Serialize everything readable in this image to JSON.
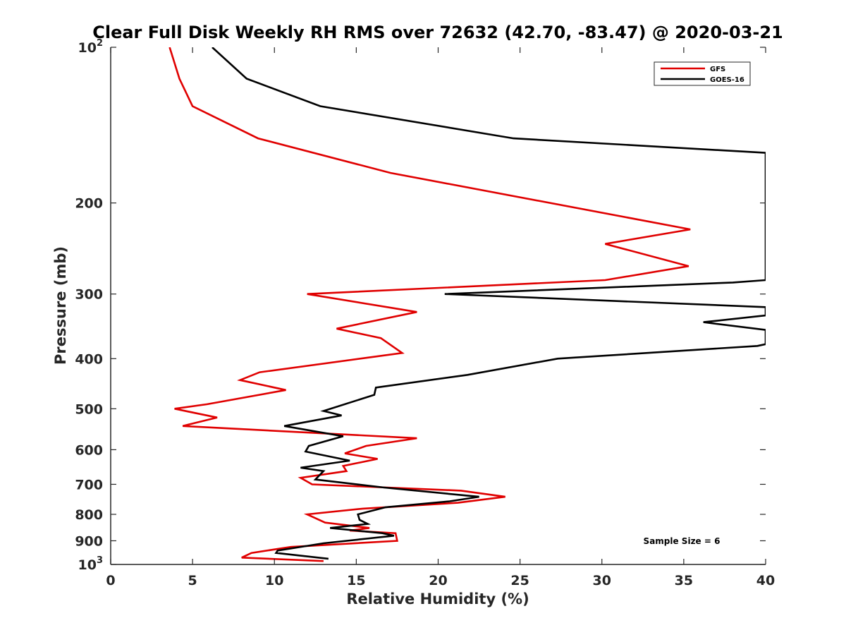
{
  "chart_data": {
    "type": "line",
    "title": "Clear Full Disk Weekly RH RMS over 72632 (42.70, -83.47) @ 2020-03-21",
    "xlabel": "Relative Humidity (%)",
    "ylabel": "Pressure (mb)",
    "xlim": [
      0,
      40
    ],
    "ylim": [
      100,
      1000
    ],
    "y_scale": "log",
    "y_reversed": true,
    "grid": false,
    "legend_position": "top-right",
    "x_ticks": [
      "0",
      "5",
      "10",
      "15",
      "20",
      "25",
      "30",
      "35",
      "40"
    ],
    "y_ticks": [
      {
        "value": 100,
        "base": "10",
        "exp": "2"
      },
      {
        "value": 200,
        "label": "200"
      },
      {
        "value": 300,
        "label": "300"
      },
      {
        "value": 400,
        "label": "400"
      },
      {
        "value": 500,
        "label": "500"
      },
      {
        "value": 600,
        "label": "600"
      },
      {
        "value": 700,
        "label": "700"
      },
      {
        "value": 800,
        "label": "800"
      },
      {
        "value": 900,
        "label": "900"
      },
      {
        "value": 1000,
        "base": "10",
        "exp": "3"
      }
    ],
    "annotation": "Sample Size = 6",
    "series": [
      {
        "name": "GFS",
        "color": "#e00000",
        "points": [
          [
            3.6,
            100
          ],
          [
            4.2,
            115
          ],
          [
            5.0,
            130
          ],
          [
            9.0,
            150
          ],
          [
            17.1,
            175
          ],
          [
            35.4,
            225
          ],
          [
            30.2,
            240
          ],
          [
            35.3,
            265
          ],
          [
            30.2,
            282
          ],
          [
            12.0,
            300
          ],
          [
            18.7,
            325
          ],
          [
            13.8,
            350
          ],
          [
            16.5,
            365
          ],
          [
            17.8,
            390
          ],
          [
            9.1,
            425
          ],
          [
            7.9,
            440
          ],
          [
            10.7,
            460
          ],
          [
            5.9,
            490
          ],
          [
            3.9,
            500
          ],
          [
            6.5,
            520
          ],
          [
            4.4,
            540
          ],
          [
            18.7,
            570
          ],
          [
            15.6,
            590
          ],
          [
            14.3,
            610
          ],
          [
            16.3,
            625
          ],
          [
            14.2,
            645
          ],
          [
            14.4,
            660
          ],
          [
            11.6,
            680
          ],
          [
            12.3,
            700
          ],
          [
            21.4,
            720
          ],
          [
            24.1,
            740
          ],
          [
            21.2,
            760
          ],
          [
            15.4,
            780
          ],
          [
            12.0,
            800
          ],
          [
            13.1,
            830
          ],
          [
            15.8,
            850
          ],
          [
            14.6,
            860
          ],
          [
            17.4,
            870
          ],
          [
            17.5,
            900
          ],
          [
            11.0,
            925
          ],
          [
            8.6,
            950
          ],
          [
            8.0,
            970
          ],
          [
            13.0,
            985
          ]
        ]
      },
      {
        "name": "GOES-16",
        "color": "#000000",
        "points": [
          [
            6.2,
            100
          ],
          [
            8.3,
            115
          ],
          [
            12.8,
            130
          ],
          [
            24.6,
            150
          ],
          [
            40.0,
            160
          ],
          [
            40.0,
            282
          ],
          [
            38.0,
            285
          ],
          [
            20.4,
            300
          ],
          [
            40.0,
            318
          ],
          [
            40.0,
            330
          ],
          [
            36.2,
            340
          ],
          [
            40.0,
            352
          ],
          [
            40.0,
            375
          ],
          [
            39.5,
            378
          ],
          [
            27.3,
            400
          ],
          [
            21.8,
            430
          ],
          [
            16.2,
            455
          ],
          [
            16.1,
            470
          ],
          [
            13.0,
            505
          ],
          [
            14.1,
            515
          ],
          [
            10.6,
            540
          ],
          [
            14.2,
            565
          ],
          [
            12.1,
            590
          ],
          [
            11.9,
            605
          ],
          [
            14.6,
            630
          ],
          [
            11.6,
            650
          ],
          [
            13.0,
            660
          ],
          [
            12.5,
            685
          ],
          [
            16.7,
            710
          ],
          [
            22.5,
            740
          ],
          [
            20.7,
            755
          ],
          [
            16.8,
            775
          ],
          [
            15.1,
            800
          ],
          [
            15.2,
            820
          ],
          [
            15.7,
            835
          ],
          [
            13.4,
            850
          ],
          [
            16.6,
            870
          ],
          [
            17.3,
            880
          ],
          [
            13.0,
            910
          ],
          [
            10.2,
            940
          ],
          [
            10.1,
            950
          ],
          [
            13.3,
            975
          ]
        ]
      }
    ]
  }
}
